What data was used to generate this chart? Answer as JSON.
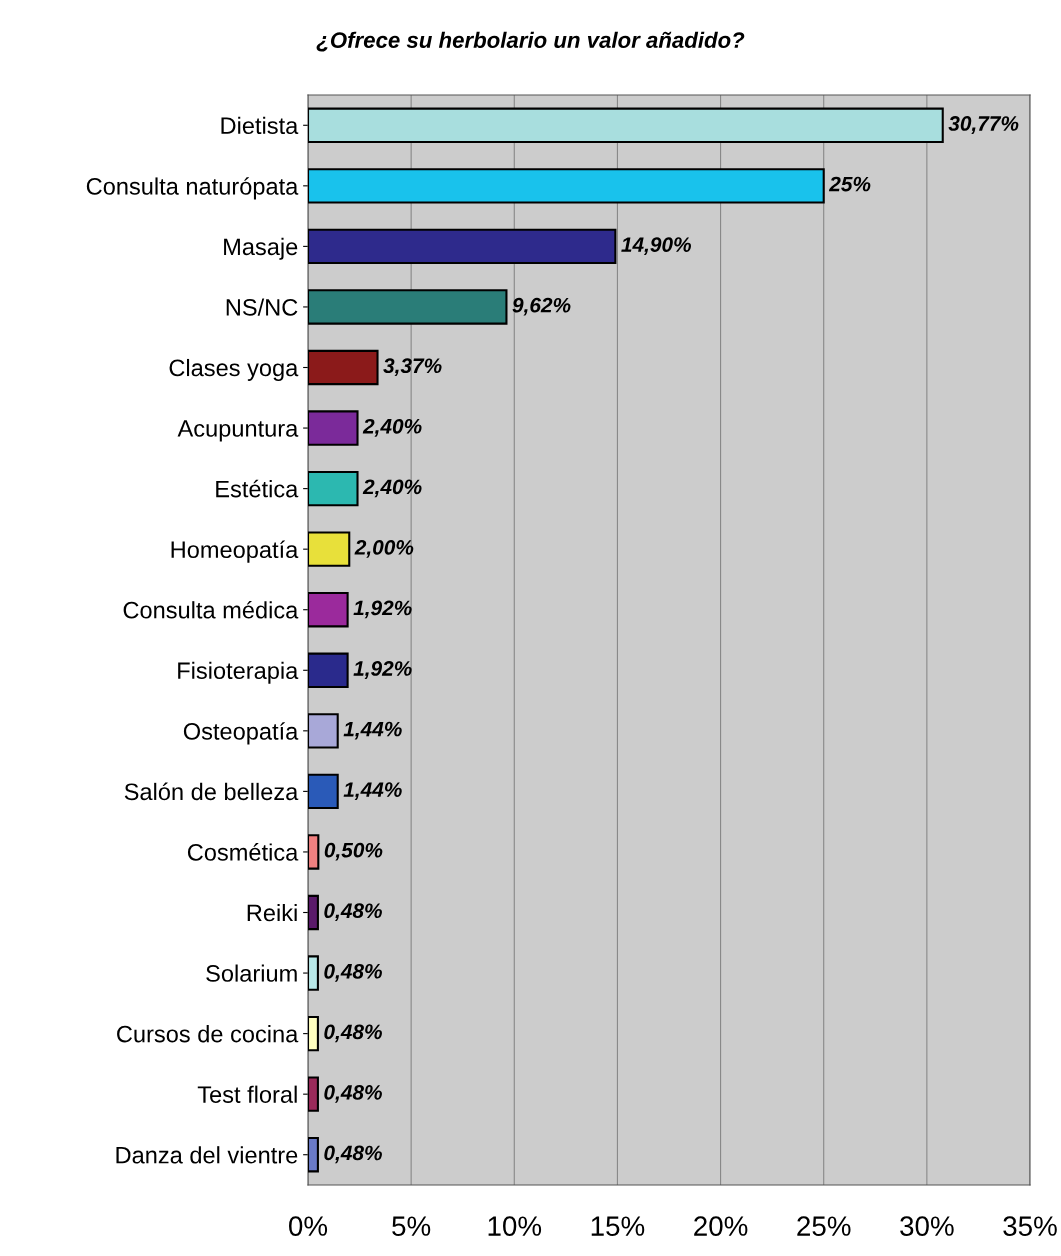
{
  "chart_data": {
    "type": "bar",
    "orientation": "horizontal",
    "title": "¿Ofrece su herbolario un valor añadido?",
    "categories": [
      "Dietista",
      "Consulta naturópata",
      "Masaje",
      "NS/NC",
      "Clases yoga",
      "Acupuntura",
      "Estética",
      "Homeopatía",
      "Consulta médica",
      "Fisioterapia",
      "Osteopatía",
      "Salón de belleza",
      "Cosmética",
      "Reiki",
      "Solarium",
      "Cursos de cocina",
      "Test floral",
      "Danza del vientre"
    ],
    "values": [
      30.77,
      25,
      14.9,
      9.62,
      3.37,
      2.4,
      2.4,
      2.0,
      1.92,
      1.92,
      1.44,
      1.44,
      0.5,
      0.48,
      0.48,
      0.48,
      0.48,
      0.48
    ],
    "colors": [
      "#a8dede",
      "#19c2ec",
      "#2e2a8c",
      "#2a7d78",
      "#8b1a1a",
      "#7b2a9a",
      "#2cb8b0",
      "#e8e03a",
      "#9b2a9c",
      "#2a2a8c",
      "#a8a8d8",
      "#2a5ab8",
      "#f08080",
      "#5a1a6a",
      "#b8e8e8",
      "#ffffc0",
      "#9a2a5a",
      "#6a7ac8"
    ],
    "value_labels": [
      "30,77%",
      "25%",
      "14,90%",
      "9,62%",
      "3,37%",
      "2,40%",
      "2,40%",
      "2,00%",
      "1,92%",
      "1,92%",
      "1,44%",
      "1,44%",
      "0,50%",
      "0,48%",
      "0,48%",
      "0,48%",
      "0,48%",
      "0,48%"
    ],
    "xlim": [
      0,
      35
    ],
    "xticks": [
      {
        "value": 0,
        "label": "0%"
      },
      {
        "value": 5,
        "label": "5%"
      },
      {
        "value": 10,
        "label": "10%"
      },
      {
        "value": 15,
        "label": "15%"
      },
      {
        "value": 20,
        "label": "20%"
      },
      {
        "value": 25,
        "label": "25%"
      },
      {
        "value": 30,
        "label": "30%"
      },
      {
        "value": 35,
        "label": "35%"
      }
    ],
    "grid": "x",
    "legend": false
  }
}
